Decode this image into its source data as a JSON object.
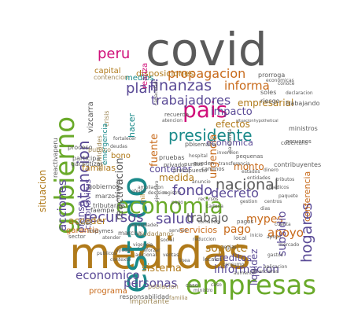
{
  "colors": {
    "gray": "#5a5a5a",
    "green": "#6aaa2a",
    "purple": "#5a4a96",
    "orange": "#c86a1a",
    "magenta": "#d0107a",
    "brown": "#b07a1a",
    "teal": "#1a8a8a",
    "tan": "#a08a5a"
  },
  "words": [
    {
      "text": "covid",
      "color": "gray"
    },
    {
      "text": "medidas",
      "color": "brown"
    },
    {
      "text": "estado",
      "color": "teal"
    },
    {
      "text": "gobierno",
      "color": "green"
    },
    {
      "text": "empresas",
      "color": "green"
    },
    {
      "text": "economia",
      "color": "green"
    },
    {
      "text": "pais",
      "color": "magenta"
    },
    {
      "text": "peru",
      "color": "magenta"
    },
    {
      "text": "atencion",
      "color": "purple"
    },
    {
      "text": "finanzas",
      "color": "purple"
    },
    {
      "text": "trabajadores",
      "color": "purple"
    },
    {
      "text": "presidente",
      "color": "teal"
    },
    {
      "text": "plan",
      "color": "purple"
    },
    {
      "text": "propagacion",
      "color": "orange"
    },
    {
      "text": "informa",
      "color": "orange"
    },
    {
      "text": "nacional",
      "color": "gray"
    },
    {
      "text": "hogares",
      "color": "purple"
    },
    {
      "text": "fondo",
      "color": "purple"
    },
    {
      "text": "decreto",
      "color": "purple"
    },
    {
      "text": "recursos",
      "color": "purple"
    },
    {
      "text": "salud",
      "color": "purple"
    },
    {
      "text": "trabajo",
      "color": "gray"
    },
    {
      "text": "apoyo",
      "color": "orange"
    },
    {
      "text": "mypes",
      "color": "orange"
    },
    {
      "text": "pago",
      "color": "orange"
    },
    {
      "text": "soporte",
      "color": "brown"
    },
    {
      "text": "informacion",
      "color": "purple"
    },
    {
      "text": "economico",
      "color": "purple"
    },
    {
      "text": "sistema",
      "color": "brown"
    },
    {
      "text": "personas",
      "color": "purple"
    },
    {
      "text": "acciones",
      "color": "purple"
    },
    {
      "text": "situacion",
      "color": "brown"
    },
    {
      "text": "subsidio",
      "color": "purple"
    },
    {
      "text": "medida",
      "color": "brown"
    },
    {
      "text": "contener",
      "color": "purple"
    },
    {
      "text": "impacto",
      "color": "purple"
    },
    {
      "text": "empresarial",
      "color": "brown"
    },
    {
      "text": "fuente",
      "color": "orange"
    },
    {
      "text": "urgencia",
      "color": "orange"
    },
    {
      "text": "economica",
      "color": "purple"
    },
    {
      "text": "creditos",
      "color": "purple"
    },
    {
      "text": "servicios",
      "color": "orange"
    },
    {
      "text": "liquidez",
      "color": "purple"
    },
    {
      "text": "conferencia",
      "color": "orange"
    },
    {
      "text": "monto",
      "color": "orange"
    },
    {
      "text": "disposiciones",
      "color": "brown"
    },
    {
      "text": "coronavirus",
      "color": "purple"
    },
    {
      "text": "prensa",
      "color": "purple"
    },
    {
      "text": "acceder",
      "color": "brown"
    },
    {
      "text": "programa",
      "color": "orange"
    },
    {
      "text": "capital",
      "color": "brown"
    },
    {
      "text": "realiza",
      "color": "magenta"
    },
    {
      "text": "efectos",
      "color": "brown"
    },
    {
      "text": "familias",
      "color": "brown"
    },
    {
      "text": "garantia",
      "color": "orange"
    },
    {
      "text": "importante",
      "color": "tan"
    },
    {
      "text": "reactivacion",
      "color": "gray"
    },
    {
      "text": "vizcarra",
      "color": "gray"
    },
    {
      "text": "mil",
      "color": "brown"
    },
    {
      "text": "medios",
      "color": "teal"
    },
    {
      "text": "hacer",
      "color": "teal"
    },
    {
      "text": "actividades",
      "color": "tan"
    },
    {
      "text": "contencion",
      "color": "tan"
    },
    {
      "text": "crisis",
      "color": "tan"
    },
    {
      "text": "emergencia",
      "color": "teal"
    },
    {
      "text": "proceso",
      "color": "gray"
    },
    {
      "text": "publico",
      "color": "tan"
    },
    {
      "text": "participa",
      "color": "gray"
    },
    {
      "text": "garantizar",
      "color": "gray"
    },
    {
      "text": "bono",
      "color": "brown"
    },
    {
      "text": "gobiernos",
      "color": "gray"
    },
    {
      "text": "marzo",
      "color": "gray"
    },
    {
      "text": "tributarias",
      "color": "gray"
    },
    {
      "text": "faempe",
      "color": "gray"
    },
    {
      "text": "cofide",
      "color": "gray"
    },
    {
      "text": "sector",
      "color": "gray"
    },
    {
      "text": "marcha",
      "color": "gray"
    },
    {
      "text": "ciudadanos",
      "color": "tan"
    },
    {
      "text": "responsabilidad",
      "color": "gray"
    },
    {
      "text": "poblacion",
      "color": "tan"
    },
    {
      "text": "reactivaperu",
      "color": "gray"
    },
    {
      "text": "cobertura",
      "color": "gray"
    },
    {
      "text": "trabajando",
      "color": "gray"
    },
    {
      "text": "riesgo",
      "color": "gray"
    },
    {
      "text": "prorroga",
      "color": "gray"
    },
    {
      "text": "soles",
      "color": "gray"
    },
    {
      "text": "ministros",
      "color": "gray"
    },
    {
      "text": "peruanos",
      "color": "gray"
    },
    {
      "text": "contribuyentes",
      "color": "gray"
    },
    {
      "text": "pequenas",
      "color": "gray"
    },
    {
      "text": "local",
      "color": "gray"
    },
    {
      "text": "caso",
      "color": "gray"
    },
    {
      "text": "pbi",
      "color": "gray"
    },
    {
      "text": "pruebas",
      "color": "gray"
    },
    {
      "text": "privado",
      "color": "gray"
    },
    {
      "text": "puntos",
      "color": "gray"
    },
    {
      "text": "semana",
      "color": "gray"
    },
    {
      "text": "presupuesto",
      "color": "gray"
    },
    {
      "text": "caminos",
      "color": "gray"
    },
    {
      "text": "pagos",
      "color": "gray"
    },
    {
      "text": "locales",
      "color": "gray"
    },
    {
      "text": "caso",
      "color": "gray"
    },
    {
      "text": "ministro",
      "color": "gray"
    },
    {
      "text": "familia",
      "color": "tan"
    },
    {
      "text": "mipymes",
      "color": "gray"
    },
    {
      "text": "atender",
      "color": "gray"
    },
    {
      "text": "mercado",
      "color": "gray"
    },
    {
      "text": "consumo",
      "color": "gray"
    },
    {
      "text": "cuenta",
      "color": "gray"
    },
    {
      "text": "pueden",
      "color": "gray"
    },
    {
      "text": "dinero",
      "color": "gray"
    },
    {
      "text": "recuerda",
      "color": "gray"
    },
    {
      "text": "tomando",
      "color": "gray"
    },
    {
      "text": "necesidades",
      "color": "gray"
    },
    {
      "text": "hospital",
      "color": "gray"
    },
    {
      "text": "inversion",
      "color": "gray"
    },
    {
      "text": "anuncio",
      "color": "gray"
    },
    {
      "text": "medicos",
      "color": "gray"
    },
    {
      "text": "paquete",
      "color": "gray"
    },
    {
      "text": "recursos",
      "color": "gray"
    },
    {
      "text": "gestion",
      "color": "gray"
    },
    {
      "text": "centros",
      "color": "gray"
    },
    {
      "text": "situacionhypothetical",
      "color": "gray"
    },
    {
      "text": "declaracion",
      "color": "gray"
    },
    {
      "text": "economicas",
      "color": "gray"
    },
    {
      "text": "conoce",
      "color": "gray"
    },
    {
      "text": "reduccion",
      "color": "gray"
    },
    {
      "text": "gastos",
      "color": "gray"
    },
    {
      "text": "cadena",
      "color": "gray"
    },
    {
      "text": "reglas",
      "color": "gray"
    },
    {
      "text": "aumento",
      "color": "gray"
    },
    {
      "text": "atencion",
      "color": "gray"
    },
    {
      "text": "linea",
      "color": "gray"
    },
    {
      "text": "ventas",
      "color": "gray"
    },
    {
      "text": "impuesto",
      "color": "gray"
    },
    {
      "text": "capacidad",
      "color": "gray"
    },
    {
      "text": "pandemia",
      "color": "gray"
    },
    {
      "text": "transferencia",
      "color": "gray"
    },
    {
      "text": "estados",
      "color": "gray"
    },
    {
      "text": "entidades",
      "color": "gray"
    },
    {
      "text": "tributos",
      "color": "gray"
    },
    {
      "text": "dias",
      "color": "gray"
    },
    {
      "text": "inicio",
      "color": "gray"
    },
    {
      "text": "aplicacion",
      "color": "gray"
    },
    {
      "text": "financieras",
      "color": "gray"
    },
    {
      "text": "ejecutivo",
      "color": "gray"
    },
    {
      "text": "decision",
      "color": "gray"
    },
    {
      "text": "oferta",
      "color": "gray"
    },
    {
      "text": "fortalecer",
      "color": "gray"
    },
    {
      "text": "deudas",
      "color": "gray"
    },
    {
      "text": "contexto",
      "color": "gray"
    },
    {
      "text": "publicos",
      "color": "gray"
    },
    {
      "text": "ayuda",
      "color": "gray"
    },
    {
      "text": "reforzar",
      "color": "gray"
    },
    {
      "text": "adicional",
      "color": "gray"
    },
    {
      "text": "vigencia",
      "color": "gray"
    },
    {
      "text": "social",
      "color": "gray"
    },
    {
      "text": "servicio",
      "color": "gray"
    },
    {
      "text": "ampliacion",
      "color": "gray"
    },
    {
      "text": "registro",
      "color": "gray"
    },
    {
      "text": "pago",
      "color": "gray"
    },
    {
      "text": "apoyo",
      "color": "gray"
    }
  ]
}
